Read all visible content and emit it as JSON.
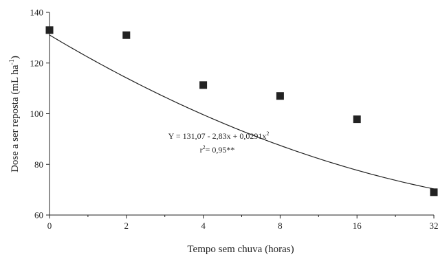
{
  "chart_data": {
    "type": "scatter",
    "title": "",
    "xlabel": "Tempo sem chuva (horas)",
    "ylabel": {
      "main": "Dose a ser reposta (mL ha",
      "sup": "-1",
      "close": ")"
    },
    "x_categories": [
      "0",
      "2",
      "4",
      "8",
      "16",
      "32"
    ],
    "ylim": [
      60,
      140
    ],
    "yticks": [
      60,
      80,
      100,
      120,
      140
    ],
    "ytick_labels": [
      "60",
      "80",
      "100",
      "120",
      "140"
    ],
    "grid": false,
    "series": [
      {
        "points": [
          {
            "x": "0",
            "y": 133
          },
          {
            "x": "2",
            "y": 131
          },
          {
            "x": "4",
            "y": 111.3
          },
          {
            "x": "8",
            "y": 107
          },
          {
            "x": "16",
            "y": 97.8
          },
          {
            "x": "32",
            "y": 69
          }
        ],
        "marker": "square",
        "color": "#222222"
      }
    ],
    "fit": {
      "equation": {
        "main": "Y = 131,07 - 2,83x + 0,0291x",
        "sup": "2"
      },
      "r2": {
        "pre": "r",
        "sup": "2",
        "post": "= 0,95**"
      },
      "a": 131.07,
      "b": -2.83,
      "c": 0.0291,
      "color": "#222222"
    }
  }
}
